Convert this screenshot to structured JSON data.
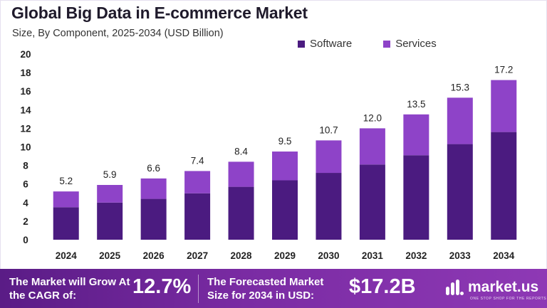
{
  "header": {
    "title": "Global Big Data in E-commerce Market",
    "subtitle": "Size, By Component, 2025-2034 (USD Billion)"
  },
  "colors": {
    "software": "#4b1b80",
    "services": "#8e43c8",
    "footer": "#7a2ba3"
  },
  "chart_data": {
    "type": "bar",
    "stacked": true,
    "categories": [
      "2024",
      "2025",
      "2026",
      "2027",
      "2028",
      "2029",
      "2030",
      "2031",
      "2032",
      "2033",
      "2034"
    ],
    "series": [
      {
        "name": "Software",
        "values": [
          3.5,
          4.0,
          4.4,
          5.0,
          5.7,
          6.4,
          7.2,
          8.1,
          9.1,
          10.3,
          11.6
        ]
      },
      {
        "name": "Services",
        "values": [
          1.7,
          1.9,
          2.2,
          2.4,
          2.7,
          3.1,
          3.5,
          3.9,
          4.4,
          5.0,
          5.6
        ]
      }
    ],
    "totals": [
      "5.2",
      "5.9",
      "6.6",
      "7.4",
      "8.4",
      "9.5",
      "10.7",
      "12.0",
      "13.5",
      "15.3",
      "17.2"
    ],
    "ylim": [
      0,
      20
    ],
    "yticks": [
      "0",
      "2",
      "4",
      "6",
      "8",
      "10",
      "12",
      "14",
      "16",
      "18",
      "20"
    ],
    "grid": false,
    "legend": "top-right"
  },
  "footer": {
    "cagr_label": "The Market will Grow At the CAGR of:",
    "cagr_value": "12.7%",
    "forecast_label": "The Forecasted Market Size for 2034 in USD:",
    "forecast_value": "$17.2B",
    "brand": "market.us",
    "brand_tagline": "ONE STOP SHOP FOR THE REPORTS",
    "logo_icon": "market-us-logo-icon"
  }
}
